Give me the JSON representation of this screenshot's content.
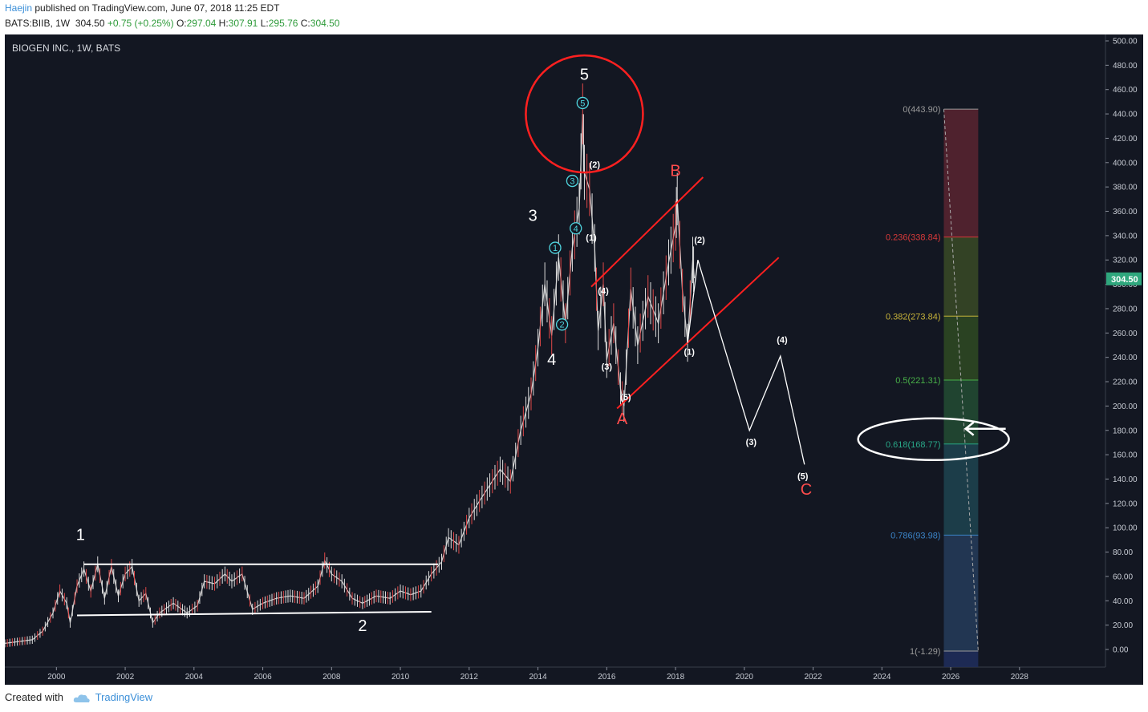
{
  "header": {
    "author": "Haejin",
    "published_text": " published on TradingView.com, June 07, 2018 11:25 EDT",
    "symbol_line": "BATS:BIIB, 1W",
    "last_price": "304.50",
    "change": "+0.75 (+0.25%)",
    "open_label": "O:",
    "open": "297.04",
    "high_label": "H:",
    "high": "307.91",
    "low_label": "L:",
    "low": "295.76",
    "close_label": "C:",
    "close": "304.50"
  },
  "footer": {
    "created_with": "Created with",
    "brand": "TradingView"
  },
  "colors": {
    "background": "#131722",
    "up_candle": "#dcdcdc",
    "down_candle": "#e04848",
    "trendline": "#ff2020",
    "wave_cyan": "#4fd6e0",
    "wave_red": "#ff4c4c",
    "projection": "#ffffff",
    "price_badge": "#2fa77d"
  },
  "chart_data": {
    "type": "line",
    "title": "BIOGEN INC., 1W, BATS",
    "xlabel": "",
    "ylabel": "",
    "x_range": [
      1998.5,
      2030.5
    ],
    "ylim": [
      -15,
      505
    ],
    "y_ticks": [
      "500.00",
      "480.00",
      "460.00",
      "440.00",
      "420.00",
      "400.00",
      "380.00",
      "360.00",
      "340.00",
      "320.00",
      "300.00",
      "280.00",
      "260.00",
      "240.00",
      "220.00",
      "200.00",
      "180.00",
      "160.00",
      "140.00",
      "120.00",
      "100.00",
      "80.00",
      "60.00",
      "40.00",
      "20.00",
      "0.00"
    ],
    "x_ticks": [
      "2000",
      "2002",
      "2004",
      "2006",
      "2008",
      "2010",
      "2012",
      "2014",
      "2016",
      "2018",
      "2020",
      "2022",
      "2024",
      "2026",
      "2028"
    ],
    "current_price": "304.50",
    "price_path": [
      [
        1998.5,
        5
      ],
      [
        1999.3,
        8
      ],
      [
        1999.6,
        15
      ],
      [
        1999.9,
        30
      ],
      [
        2000.1,
        48
      ],
      [
        2000.3,
        38
      ],
      [
        2000.4,
        22
      ],
      [
        2000.6,
        52
      ],
      [
        2000.8,
        66
      ],
      [
        2001.0,
        48
      ],
      [
        2001.2,
        70
      ],
      [
        2001.4,
        42
      ],
      [
        2001.6,
        68
      ],
      [
        2001.8,
        44
      ],
      [
        2002.0,
        62
      ],
      [
        2002.2,
        68
      ],
      [
        2002.4,
        40
      ],
      [
        2002.6,
        46
      ],
      [
        2002.8,
        22
      ],
      [
        2003.0,
        30
      ],
      [
        2003.4,
        38
      ],
      [
        2003.8,
        30
      ],
      [
        2004.1,
        36
      ],
      [
        2004.3,
        56
      ],
      [
        2004.6,
        54
      ],
      [
        2004.9,
        62
      ],
      [
        2005.1,
        56
      ],
      [
        2005.4,
        62
      ],
      [
        2005.7,
        33
      ],
      [
        2006.0,
        38
      ],
      [
        2006.4,
        42
      ],
      [
        2006.8,
        44
      ],
      [
        2007.2,
        42
      ],
      [
        2007.6,
        52
      ],
      [
        2007.8,
        73
      ],
      [
        2008.0,
        62
      ],
      [
        2008.3,
        56
      ],
      [
        2008.6,
        42
      ],
      [
        2008.9,
        38
      ],
      [
        2009.3,
        44
      ],
      [
        2009.7,
        42
      ],
      [
        2010.0,
        48
      ],
      [
        2010.3,
        45
      ],
      [
        2010.6,
        48
      ],
      [
        2010.9,
        62
      ],
      [
        2011.2,
        72
      ],
      [
        2011.4,
        92
      ],
      [
        2011.7,
        86
      ],
      [
        2012.0,
        108
      ],
      [
        2012.3,
        122
      ],
      [
        2012.6,
        135
      ],
      [
        2012.9,
        148
      ],
      [
        2013.2,
        138
      ],
      [
        2013.5,
        180
      ],
      [
        2013.8,
        210
      ],
      [
        2014.0,
        248
      ],
      [
        2014.2,
        300
      ],
      [
        2014.4,
        258
      ],
      [
        2014.6,
        322
      ],
      [
        2014.8,
        268
      ],
      [
        2015.0,
        330
      ],
      [
        2015.2,
        362
      ],
      [
        2015.3,
        440
      ],
      [
        2015.35,
        392
      ],
      [
        2015.5,
        378
      ],
      [
        2015.65,
        330
      ],
      [
        2015.75,
        262
      ],
      [
        2015.9,
        300
      ],
      [
        2016.0,
        238
      ],
      [
        2016.2,
        268
      ],
      [
        2016.4,
        214
      ],
      [
        2016.5,
        200
      ],
      [
        2016.7,
        296
      ],
      [
        2016.9,
        250
      ],
      [
        2017.2,
        290
      ],
      [
        2017.5,
        268
      ],
      [
        2017.8,
        318
      ],
      [
        2018.0,
        348
      ],
      [
        2018.05,
        370
      ],
      [
        2018.2,
        295
      ],
      [
        2018.35,
        252
      ],
      [
        2018.5,
        320
      ],
      [
        2018.55,
        305
      ]
    ],
    "projection_path": [
      [
        2018.35,
        252
      ],
      [
        2018.65,
        320
      ],
      [
        2020.15,
        180
      ],
      [
        2021.05,
        241
      ],
      [
        2021.75,
        152
      ]
    ],
    "fibonacci": {
      "x_start": 2025.8,
      "x_end": 2026.8,
      "levels": [
        {
          "label": "0(443.90)",
          "value": 443.9,
          "color": "#9a9a9a"
        },
        {
          "label": "0.236(338.84)",
          "value": 338.84,
          "color": "#d83a3a"
        },
        {
          "label": "0.382(273.84)",
          "value": 273.84,
          "color": "#c8b43a"
        },
        {
          "label": "0.5(221.31)",
          "value": 221.31,
          "color": "#48b048"
        },
        {
          "label": "0.618(168.77)",
          "value": 168.77,
          "color": "#28a888"
        },
        {
          "label": "0.786(93.98)",
          "value": 93.98,
          "color": "#3b84c8"
        },
        {
          "label": "1(-1.29)",
          "value": -1.29,
          "color": "#9a9a9a"
        }
      ]
    },
    "horizontal_lines": [
      {
        "x1": 2000.8,
        "y1": 70,
        "x2": 2011.1,
        "y2": 70,
        "color": "#ffffff"
      },
      {
        "x1": 2000.6,
        "y1": 28,
        "x2": 2010.9,
        "y2": 31,
        "color": "#ffffff"
      }
    ],
    "channel_lines": [
      {
        "x1": 2015.55,
        "y1": 298,
        "x2": 2018.8,
        "y2": 388
      },
      {
        "x1": 2016.3,
        "y1": 198,
        "x2": 2021.0,
        "y2": 322
      }
    ],
    "annotations": [
      {
        "text": "1",
        "x": 2000.7,
        "y": 90,
        "color": "#ffffff",
        "size": 20
      },
      {
        "text": "2",
        "x": 2008.9,
        "y": 15,
        "color": "#ffffff",
        "size": 20
      },
      {
        "text": "3",
        "x": 2013.85,
        "y": 352,
        "color": "#ffffff",
        "size": 20
      },
      {
        "text": "4",
        "x": 2014.4,
        "y": 234,
        "color": "#ffffff",
        "size": 20
      },
      {
        "text": "5",
        "x": 2015.35,
        "y": 468,
        "color": "#ffffff",
        "size": 20
      },
      {
        "text": "B",
        "x": 2018.0,
        "y": 389,
        "color": "#ff4c4c",
        "size": 20
      },
      {
        "text": "A",
        "x": 2016.45,
        "y": 185,
        "color": "#ff4c4c",
        "size": 20
      },
      {
        "text": "C",
        "x": 2021.8,
        "y": 127,
        "color": "#ff4c4c",
        "size": 20
      },
      {
        "text": "(2)",
        "x": 2015.65,
        "y": 396,
        "color": "#ffffff",
        "size": 11
      },
      {
        "text": "(1)",
        "x": 2015.55,
        "y": 336,
        "color": "#ffffff",
        "size": 11
      },
      {
        "text": "(4)",
        "x": 2015.9,
        "y": 292,
        "color": "#ffffff",
        "size": 11
      },
      {
        "text": "(3)",
        "x": 2016.0,
        "y": 230,
        "color": "#ffffff",
        "size": 11
      },
      {
        "text": "(5)",
        "x": 2016.55,
        "y": 205,
        "color": "#ffffff",
        "size": 11
      },
      {
        "text": "(2)",
        "x": 2018.7,
        "y": 334,
        "color": "#ffffff",
        "size": 11
      },
      {
        "text": "(1)",
        "x": 2018.4,
        "y": 242,
        "color": "#ffffff",
        "size": 11
      },
      {
        "text": "(4)",
        "x": 2021.1,
        "y": 252,
        "color": "#ffffff",
        "size": 11
      },
      {
        "text": "(3)",
        "x": 2020.2,
        "y": 168,
        "color": "#ffffff",
        "size": 11
      },
      {
        "text": "(5)",
        "x": 2021.7,
        "y": 140,
        "color": "#ffffff",
        "size": 11
      }
    ],
    "circled_waves": [
      {
        "text": "5",
        "x": 2015.3,
        "y": 449
      },
      {
        "text": "3",
        "x": 2015.0,
        "y": 385
      },
      {
        "text": "4",
        "x": 2015.1,
        "y": 346
      },
      {
        "text": "1",
        "x": 2014.5,
        "y": 330
      },
      {
        "text": "2",
        "x": 2014.7,
        "y": 267
      }
    ]
  }
}
